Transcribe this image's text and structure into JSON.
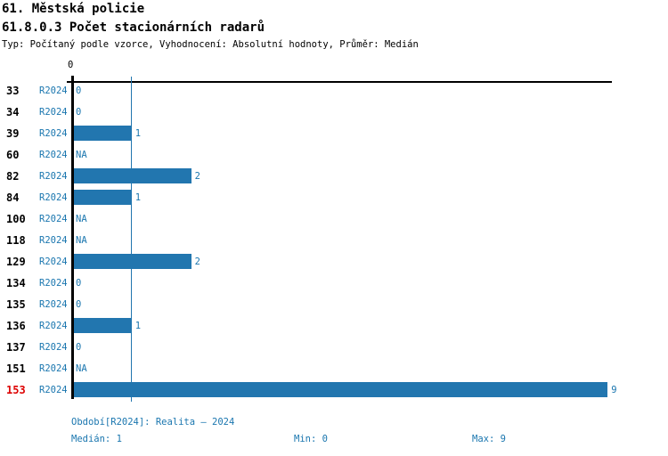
{
  "header": {
    "title_line1": "61. Městská policie",
    "title_line2": "61.8.0.3 Počet stacionárních radarů",
    "subtitle": "Typ: Počítaný podle vzorce, Vyhodnocení: Absolutní hodnoty, Průměr: Medián"
  },
  "chart_data": {
    "type": "bar",
    "orientation": "horizontal",
    "title": "61.8.0.3 Počet stacionárních radarů",
    "x_axis_origin_label": "0",
    "xlim": [
      0,
      9.1
    ],
    "grid": false,
    "median_reference_line": 1,
    "period_code": "R2024",
    "categories": [
      "33",
      "34",
      "39",
      "60",
      "82",
      "84",
      "100",
      "118",
      "129",
      "134",
      "135",
      "136",
      "137",
      "151",
      "153"
    ],
    "values": [
      0,
      0,
      1,
      null,
      2,
      1,
      null,
      null,
      2,
      0,
      0,
      1,
      0,
      null,
      9
    ],
    "rows": [
      {
        "category": "33",
        "period": "R2024",
        "value": 0,
        "label": "0",
        "highlight": false
      },
      {
        "category": "34",
        "period": "R2024",
        "value": 0,
        "label": "0",
        "highlight": false
      },
      {
        "category": "39",
        "period": "R2024",
        "value": 1,
        "label": "1",
        "highlight": false
      },
      {
        "category": "60",
        "period": "R2024",
        "value": null,
        "label": "NA",
        "highlight": false
      },
      {
        "category": "82",
        "period": "R2024",
        "value": 2,
        "label": "2",
        "highlight": false
      },
      {
        "category": "84",
        "period": "R2024",
        "value": 1,
        "label": "1",
        "highlight": false
      },
      {
        "category": "100",
        "period": "R2024",
        "value": null,
        "label": "NA",
        "highlight": false
      },
      {
        "category": "118",
        "period": "R2024",
        "value": null,
        "label": "NA",
        "highlight": false
      },
      {
        "category": "129",
        "period": "R2024",
        "value": 2,
        "label": "2",
        "highlight": false
      },
      {
        "category": "134",
        "period": "R2024",
        "value": 0,
        "label": "0",
        "highlight": false
      },
      {
        "category": "135",
        "period": "R2024",
        "value": 0,
        "label": "0",
        "highlight": false
      },
      {
        "category": "136",
        "period": "R2024",
        "value": 1,
        "label": "1",
        "highlight": false
      },
      {
        "category": "137",
        "period": "R2024",
        "value": 0,
        "label": "0",
        "highlight": false
      },
      {
        "category": "151",
        "period": "R2024",
        "value": null,
        "label": "NA",
        "highlight": false
      },
      {
        "category": "153",
        "period": "R2024",
        "value": 9,
        "label": "9",
        "highlight": true
      }
    ]
  },
  "footer": {
    "period_line": "Období[R2024]: Realita – 2024",
    "median_label": "Medián: 1",
    "min_label": "Min: 0",
    "max_label": "Max: 9"
  },
  "colors": {
    "bar_blue": "#2276AF",
    "text_blue": "#1A76AF",
    "highlight_red": "#DD0000",
    "axis_black": "#000000"
  }
}
